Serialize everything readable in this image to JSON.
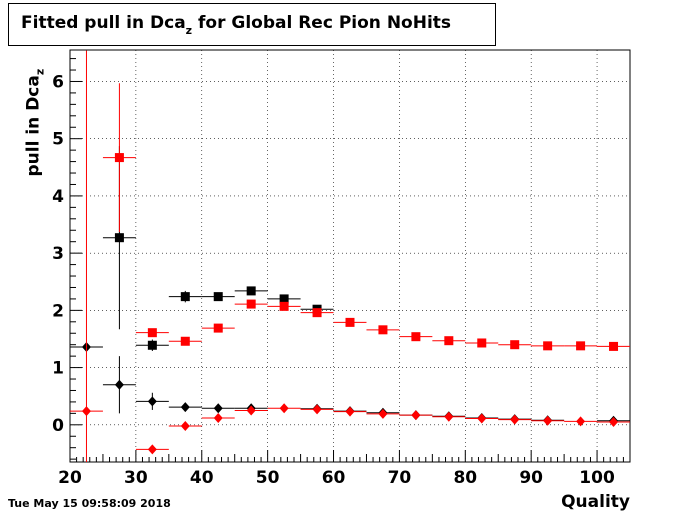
{
  "title": {
    "prefix": "Fitted pull in Dca",
    "sub": "z",
    "suffix": " for Global Rec Pion NoHits"
  },
  "ylabel": {
    "prefix": "pull in Dca",
    "sub": "z"
  },
  "xlabel": "Quality",
  "timestamp": "Tue May 15 09:58:09 2018",
  "chart_data": {
    "type": "scatter",
    "title": "Fitted pull in Dca_z for Global Rec Pion NoHits",
    "xlabel": "Quality",
    "ylabel": "pull in Dca_z",
    "xlim": [
      20,
      105
    ],
    "ylim": [
      -0.65,
      6.55
    ],
    "xticks": [
      20,
      30,
      40,
      50,
      60,
      70,
      80,
      90,
      100
    ],
    "yticks": [
      0,
      1,
      2,
      3,
      4,
      5,
      6
    ],
    "grid": true,
    "bin_half_width": 2.5,
    "series": [
      {
        "marker": "square",
        "color": "#000000",
        "points": [
          {
            "x": 27.5,
            "y": 3.27,
            "ey": 1.6
          },
          {
            "x": 32.5,
            "y": 1.39,
            "ey": 0.1
          },
          {
            "x": 37.5,
            "y": 2.24,
            "ey": 0.1
          },
          {
            "x": 42.5,
            "y": 2.24,
            "ey": 0.06
          },
          {
            "x": 47.5,
            "y": 2.34,
            "ey": 0.05
          },
          {
            "x": 52.5,
            "y": 2.2,
            "ey": 0.04
          },
          {
            "x": 57.5,
            "y": 2.02,
            "ey": 0.03
          }
        ]
      },
      {
        "marker": "square",
        "color": "#ff0000",
        "points": [
          {
            "x": 27.5,
            "y": 4.67,
            "ey": 1.3
          },
          {
            "x": 32.5,
            "y": 1.61,
            "ey": 0.06
          },
          {
            "x": 37.5,
            "y": 1.46,
            "ey": 0.04
          },
          {
            "x": 42.5,
            "y": 1.69,
            "ey": 0.03
          },
          {
            "x": 47.5,
            "y": 2.11,
            "ey": 0.03
          },
          {
            "x": 52.5,
            "y": 2.07,
            "ey": 0.02
          },
          {
            "x": 57.5,
            "y": 1.96,
            "ey": 0.02
          },
          {
            "x": 62.5,
            "y": 1.79,
            "ey": 0.02
          },
          {
            "x": 67.5,
            "y": 1.66,
            "ey": 0.02
          },
          {
            "x": 72.5,
            "y": 1.54,
            "ey": 0.02
          },
          {
            "x": 77.5,
            "y": 1.47,
            "ey": 0.02
          },
          {
            "x": 82.5,
            "y": 1.43,
            "ey": 0.02
          },
          {
            "x": 87.5,
            "y": 1.4,
            "ey": 0.02
          },
          {
            "x": 92.5,
            "y": 1.38,
            "ey": 0.02
          },
          {
            "x": 97.5,
            "y": 1.38,
            "ey": 0.02
          },
          {
            "x": 102.5,
            "y": 1.37,
            "ey": 0.02
          }
        ]
      },
      {
        "marker": "diamond",
        "color": "#000000",
        "points": [
          {
            "x": 22.5,
            "y": 1.36,
            "ey": 0.05
          },
          {
            "x": 27.5,
            "y": 0.7,
            "ey": 0.5
          },
          {
            "x": 32.5,
            "y": 0.41,
            "ey": 0.15
          },
          {
            "x": 37.5,
            "y": 0.31,
            "ey": 0.06
          },
          {
            "x": 42.5,
            "y": 0.29,
            "ey": 0.03
          },
          {
            "x": 47.5,
            "y": 0.29,
            "ey": 0.02
          },
          {
            "x": 57.5,
            "y": 0.28,
            "ey": 0.02
          },
          {
            "x": 62.5,
            "y": 0.24,
            "ey": 0.02
          },
          {
            "x": 67.5,
            "y": 0.21,
            "ey": 0.02
          },
          {
            "x": 72.5,
            "y": 0.17,
            "ey": 0.02
          },
          {
            "x": 77.5,
            "y": 0.15,
            "ey": 0.02
          },
          {
            "x": 82.5,
            "y": 0.12,
            "ey": 0.02
          },
          {
            "x": 87.5,
            "y": 0.1,
            "ey": 0.02
          },
          {
            "x": 92.5,
            "y": 0.08,
            "ey": 0.02
          },
          {
            "x": 102.5,
            "y": 0.07,
            "ey": 0.02
          }
        ]
      },
      {
        "marker": "diamond",
        "color": "#ff0000",
        "points": [
          {
            "x": 22.5,
            "y": 0.24,
            "ey": 6.3
          },
          {
            "x": 32.5,
            "y": -0.43,
            "ey": 0.05
          },
          {
            "x": 37.5,
            "y": -0.02,
            "ey": 0.03
          },
          {
            "x": 42.5,
            "y": 0.12,
            "ey": 0.02
          },
          {
            "x": 47.5,
            "y": 0.25,
            "ey": 0.02
          },
          {
            "x": 52.5,
            "y": 0.29,
            "ey": 0.02
          },
          {
            "x": 57.5,
            "y": 0.27,
            "ey": 0.02
          },
          {
            "x": 62.5,
            "y": 0.23,
            "ey": 0.02
          },
          {
            "x": 67.5,
            "y": 0.19,
            "ey": 0.02
          },
          {
            "x": 72.5,
            "y": 0.17,
            "ey": 0.02
          },
          {
            "x": 77.5,
            "y": 0.14,
            "ey": 0.02
          },
          {
            "x": 82.5,
            "y": 0.11,
            "ey": 0.02
          },
          {
            "x": 87.5,
            "y": 0.09,
            "ey": 0.02
          },
          {
            "x": 92.5,
            "y": 0.07,
            "ey": 0.02
          },
          {
            "x": 97.5,
            "y": 0.06,
            "ey": 0.02
          },
          {
            "x": 102.5,
            "y": 0.05,
            "ey": 0.02
          }
        ]
      }
    ]
  }
}
